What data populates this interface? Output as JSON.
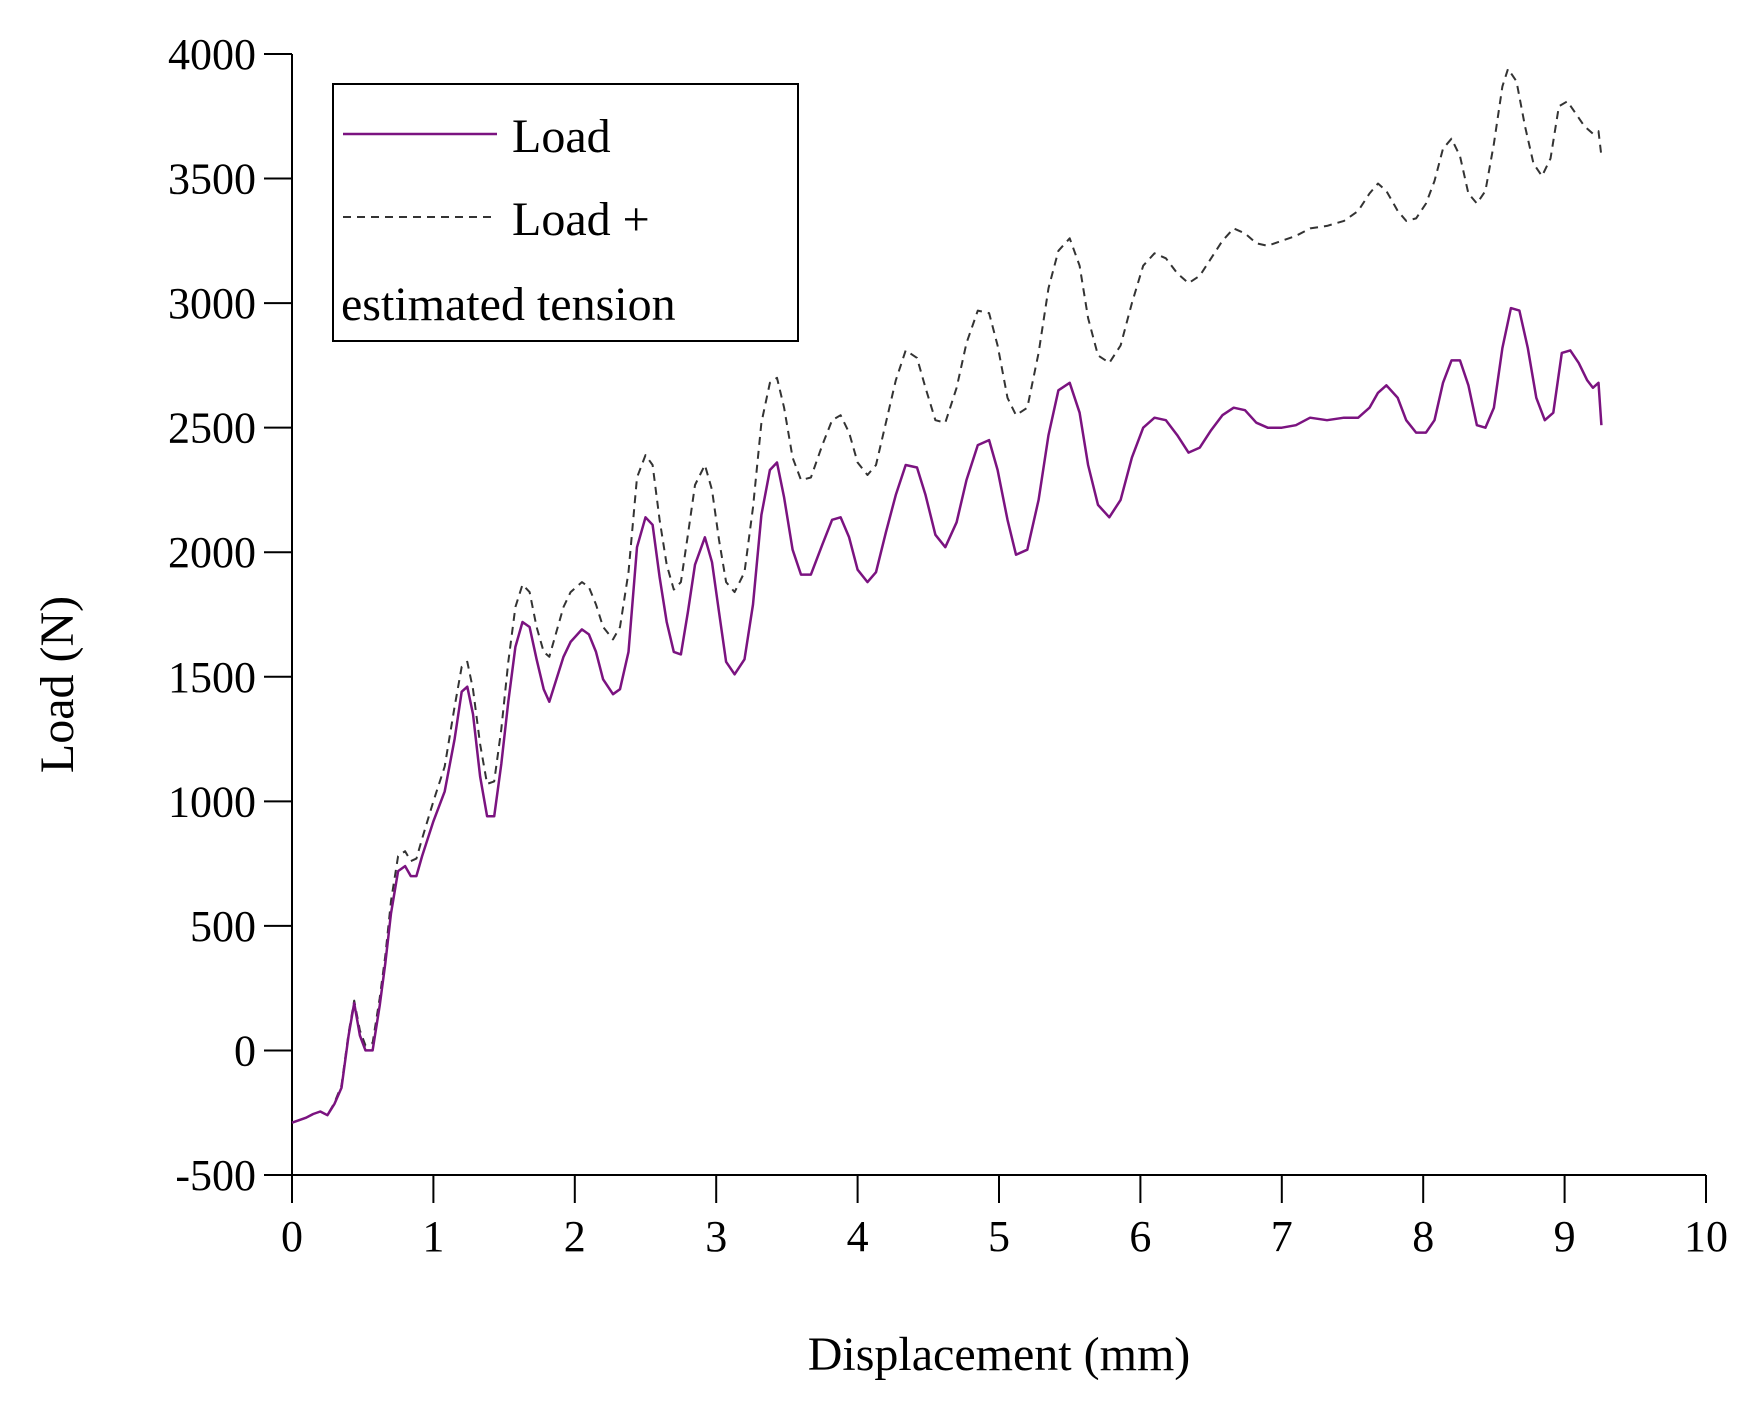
{
  "chart_data": {
    "type": "line",
    "title": "",
    "xlabel": "Displacement (mm)",
    "ylabel": "Load (N)",
    "xlim": [
      0,
      10
    ],
    "ylim": [
      -500,
      4000
    ],
    "xticks": [
      0,
      1,
      2,
      3,
      4,
      5,
      6,
      7,
      8,
      9,
      10
    ],
    "yticks": [
      -500,
      0,
      500,
      1000,
      1500,
      2000,
      2500,
      3000,
      3500,
      4000
    ],
    "grid": false,
    "legend": {
      "position": "top-left",
      "entries": [
        "Load",
        "Load +",
        "estimated tension"
      ]
    },
    "series": [
      {
        "name": "Load",
        "color": "#7b1380",
        "style": "solid",
        "points": [
          [
            0.0,
            -290
          ],
          [
            0.1,
            -270
          ],
          [
            0.15,
            -255
          ],
          [
            0.2,
            -245
          ],
          [
            0.25,
            -260
          ],
          [
            0.3,
            -215
          ],
          [
            0.35,
            -150
          ],
          [
            0.4,
            60
          ],
          [
            0.44,
            190
          ],
          [
            0.48,
            60
          ],
          [
            0.52,
            0
          ],
          [
            0.57,
            0
          ],
          [
            0.62,
            180
          ],
          [
            0.66,
            350
          ],
          [
            0.7,
            550
          ],
          [
            0.75,
            720
          ],
          [
            0.8,
            740
          ],
          [
            0.84,
            700
          ],
          [
            0.88,
            700
          ],
          [
            0.92,
            780
          ],
          [
            1.0,
            920
          ],
          [
            1.08,
            1040
          ],
          [
            1.15,
            1250
          ],
          [
            1.2,
            1440
          ],
          [
            1.24,
            1460
          ],
          [
            1.28,
            1350
          ],
          [
            1.33,
            1100
          ],
          [
            1.38,
            940
          ],
          [
            1.43,
            940
          ],
          [
            1.48,
            1150
          ],
          [
            1.53,
            1400
          ],
          [
            1.58,
            1620
          ],
          [
            1.63,
            1720
          ],
          [
            1.68,
            1700
          ],
          [
            1.73,
            1570
          ],
          [
            1.78,
            1450
          ],
          [
            1.82,
            1400
          ],
          [
            1.87,
            1490
          ],
          [
            1.92,
            1580
          ],
          [
            1.97,
            1640
          ],
          [
            2.05,
            1690
          ],
          [
            2.1,
            1670
          ],
          [
            2.15,
            1600
          ],
          [
            2.2,
            1490
          ],
          [
            2.27,
            1430
          ],
          [
            2.32,
            1450
          ],
          [
            2.38,
            1600
          ],
          [
            2.44,
            2020
          ],
          [
            2.5,
            2140
          ],
          [
            2.55,
            2110
          ],
          [
            2.6,
            1900
          ],
          [
            2.65,
            1720
          ],
          [
            2.7,
            1600
          ],
          [
            2.75,
            1590
          ],
          [
            2.8,
            1760
          ],
          [
            2.85,
            1950
          ],
          [
            2.92,
            2060
          ],
          [
            2.97,
            1960
          ],
          [
            3.02,
            1760
          ],
          [
            3.07,
            1560
          ],
          [
            3.13,
            1510
          ],
          [
            3.2,
            1570
          ],
          [
            3.26,
            1790
          ],
          [
            3.32,
            2150
          ],
          [
            3.38,
            2330
          ],
          [
            3.43,
            2360
          ],
          [
            3.48,
            2220
          ],
          [
            3.54,
            2010
          ],
          [
            3.6,
            1910
          ],
          [
            3.67,
            1910
          ],
          [
            3.75,
            2030
          ],
          [
            3.82,
            2130
          ],
          [
            3.88,
            2140
          ],
          [
            3.94,
            2060
          ],
          [
            4.0,
            1930
          ],
          [
            4.07,
            1880
          ],
          [
            4.13,
            1920
          ],
          [
            4.2,
            2080
          ],
          [
            4.27,
            2230
          ],
          [
            4.34,
            2350
          ],
          [
            4.42,
            2340
          ],
          [
            4.48,
            2230
          ],
          [
            4.55,
            2070
          ],
          [
            4.62,
            2020
          ],
          [
            4.7,
            2120
          ],
          [
            4.77,
            2290
          ],
          [
            4.85,
            2430
          ],
          [
            4.93,
            2450
          ],
          [
            4.99,
            2330
          ],
          [
            5.06,
            2130
          ],
          [
            5.12,
            1990
          ],
          [
            5.2,
            2010
          ],
          [
            5.28,
            2210
          ],
          [
            5.35,
            2470
          ],
          [
            5.42,
            2650
          ],
          [
            5.5,
            2680
          ],
          [
            5.57,
            2560
          ],
          [
            5.63,
            2350
          ],
          [
            5.7,
            2190
          ],
          [
            5.78,
            2140
          ],
          [
            5.86,
            2210
          ],
          [
            5.94,
            2380
          ],
          [
            6.02,
            2500
          ],
          [
            6.1,
            2540
          ],
          [
            6.18,
            2530
          ],
          [
            6.26,
            2470
          ],
          [
            6.34,
            2400
          ],
          [
            6.42,
            2420
          ],
          [
            6.5,
            2490
          ],
          [
            6.58,
            2550
          ],
          [
            6.66,
            2580
          ],
          [
            6.74,
            2570
          ],
          [
            6.82,
            2520
          ],
          [
            6.9,
            2500
          ],
          [
            7.0,
            2500
          ],
          [
            7.1,
            2510
          ],
          [
            7.2,
            2540
          ],
          [
            7.32,
            2530
          ],
          [
            7.44,
            2540
          ],
          [
            7.54,
            2540
          ],
          [
            7.62,
            2580
          ],
          [
            7.68,
            2640
          ],
          [
            7.74,
            2670
          ],
          [
            7.82,
            2620
          ],
          [
            7.88,
            2530
          ],
          [
            7.95,
            2480
          ],
          [
            8.02,
            2480
          ],
          [
            8.08,
            2530
          ],
          [
            8.14,
            2680
          ],
          [
            8.2,
            2770
          ],
          [
            8.26,
            2770
          ],
          [
            8.32,
            2670
          ],
          [
            8.38,
            2510
          ],
          [
            8.44,
            2500
          ],
          [
            8.5,
            2580
          ],
          [
            8.56,
            2820
          ],
          [
            8.62,
            2980
          ],
          [
            8.68,
            2970
          ],
          [
            8.74,
            2820
          ],
          [
            8.8,
            2620
          ],
          [
            8.86,
            2530
          ],
          [
            8.92,
            2560
          ],
          [
            8.98,
            2800
          ],
          [
            9.04,
            2810
          ],
          [
            9.1,
            2760
          ],
          [
            9.16,
            2690
          ],
          [
            9.2,
            2660
          ],
          [
            9.24,
            2680
          ],
          [
            9.26,
            2510
          ]
        ]
      },
      {
        "name": "Load + estimated tension",
        "color": "#333333",
        "style": "dashed",
        "points": [
          [
            0.0,
            -290
          ],
          [
            0.1,
            -270
          ],
          [
            0.15,
            -255
          ],
          [
            0.2,
            -245
          ],
          [
            0.25,
            -260
          ],
          [
            0.3,
            -210
          ],
          [
            0.35,
            -140
          ],
          [
            0.4,
            70
          ],
          [
            0.44,
            200
          ],
          [
            0.48,
            80
          ],
          [
            0.52,
            20
          ],
          [
            0.57,
            30
          ],
          [
            0.62,
            210
          ],
          [
            0.66,
            380
          ],
          [
            0.7,
            600
          ],
          [
            0.75,
            780
          ],
          [
            0.8,
            800
          ],
          [
            0.84,
            760
          ],
          [
            0.88,
            770
          ],
          [
            0.92,
            850
          ],
          [
            1.0,
            1000
          ],
          [
            1.08,
            1140
          ],
          [
            1.15,
            1380
          ],
          [
            1.2,
            1540
          ],
          [
            1.24,
            1560
          ],
          [
            1.28,
            1450
          ],
          [
            1.33,
            1230
          ],
          [
            1.38,
            1070
          ],
          [
            1.43,
            1080
          ],
          [
            1.48,
            1290
          ],
          [
            1.53,
            1560
          ],
          [
            1.58,
            1780
          ],
          [
            1.63,
            1870
          ],
          [
            1.68,
            1840
          ],
          [
            1.73,
            1700
          ],
          [
            1.78,
            1600
          ],
          [
            1.82,
            1580
          ],
          [
            1.87,
            1680
          ],
          [
            1.92,
            1780
          ],
          [
            1.97,
            1840
          ],
          [
            2.05,
            1880
          ],
          [
            2.1,
            1860
          ],
          [
            2.15,
            1790
          ],
          [
            2.2,
            1700
          ],
          [
            2.27,
            1650
          ],
          [
            2.32,
            1700
          ],
          [
            2.38,
            1920
          ],
          [
            2.44,
            2300
          ],
          [
            2.5,
            2390
          ],
          [
            2.55,
            2350
          ],
          [
            2.6,
            2130
          ],
          [
            2.65,
            1950
          ],
          [
            2.7,
            1850
          ],
          [
            2.75,
            1880
          ],
          [
            2.8,
            2070
          ],
          [
            2.85,
            2270
          ],
          [
            2.92,
            2350
          ],
          [
            2.97,
            2250
          ],
          [
            3.02,
            2050
          ],
          [
            3.07,
            1880
          ],
          [
            3.13,
            1840
          ],
          [
            3.2,
            1920
          ],
          [
            3.26,
            2180
          ],
          [
            3.32,
            2520
          ],
          [
            3.38,
            2680
          ],
          [
            3.43,
            2700
          ],
          [
            3.48,
            2580
          ],
          [
            3.54,
            2380
          ],
          [
            3.6,
            2290
          ],
          [
            3.67,
            2300
          ],
          [
            3.75,
            2430
          ],
          [
            3.82,
            2530
          ],
          [
            3.88,
            2550
          ],
          [
            3.94,
            2480
          ],
          [
            4.0,
            2360
          ],
          [
            4.07,
            2310
          ],
          [
            4.13,
            2350
          ],
          [
            4.2,
            2520
          ],
          [
            4.27,
            2690
          ],
          [
            4.34,
            2810
          ],
          [
            4.42,
            2780
          ],
          [
            4.48,
            2660
          ],
          [
            4.55,
            2530
          ],
          [
            4.62,
            2520
          ],
          [
            4.7,
            2660
          ],
          [
            4.77,
            2840
          ],
          [
            4.85,
            2970
          ],
          [
            4.93,
            2960
          ],
          [
            4.99,
            2830
          ],
          [
            5.06,
            2620
          ],
          [
            5.12,
            2550
          ],
          [
            5.2,
            2580
          ],
          [
            5.28,
            2800
          ],
          [
            5.35,
            3060
          ],
          [
            5.42,
            3210
          ],
          [
            5.5,
            3260
          ],
          [
            5.57,
            3150
          ],
          [
            5.63,
            2940
          ],
          [
            5.7,
            2790
          ],
          [
            5.78,
            2760
          ],
          [
            5.86,
            2830
          ],
          [
            5.94,
            3000
          ],
          [
            6.02,
            3150
          ],
          [
            6.1,
            3200
          ],
          [
            6.18,
            3180
          ],
          [
            6.26,
            3120
          ],
          [
            6.34,
            3080
          ],
          [
            6.42,
            3110
          ],
          [
            6.5,
            3180
          ],
          [
            6.58,
            3250
          ],
          [
            6.66,
            3300
          ],
          [
            6.74,
            3280
          ],
          [
            6.82,
            3240
          ],
          [
            6.9,
            3230
          ],
          [
            7.0,
            3250
          ],
          [
            7.1,
            3270
          ],
          [
            7.2,
            3300
          ],
          [
            7.32,
            3310
          ],
          [
            7.44,
            3330
          ],
          [
            7.54,
            3370
          ],
          [
            7.62,
            3440
          ],
          [
            7.68,
            3480
          ],
          [
            7.74,
            3450
          ],
          [
            7.82,
            3370
          ],
          [
            7.88,
            3330
          ],
          [
            7.95,
            3340
          ],
          [
            8.02,
            3400
          ],
          [
            8.08,
            3490
          ],
          [
            8.14,
            3620
          ],
          [
            8.2,
            3660
          ],
          [
            8.26,
            3590
          ],
          [
            8.32,
            3440
          ],
          [
            8.38,
            3400
          ],
          [
            8.44,
            3450
          ],
          [
            8.5,
            3640
          ],
          [
            8.56,
            3870
          ],
          [
            8.6,
            3940
          ],
          [
            8.66,
            3890
          ],
          [
            8.72,
            3710
          ],
          [
            8.78,
            3560
          ],
          [
            8.84,
            3510
          ],
          [
            8.9,
            3580
          ],
          [
            8.96,
            3790
          ],
          [
            9.02,
            3810
          ],
          [
            9.08,
            3760
          ],
          [
            9.14,
            3710
          ],
          [
            9.2,
            3680
          ],
          [
            9.24,
            3690
          ],
          [
            9.26,
            3590
          ]
        ]
      }
    ]
  }
}
